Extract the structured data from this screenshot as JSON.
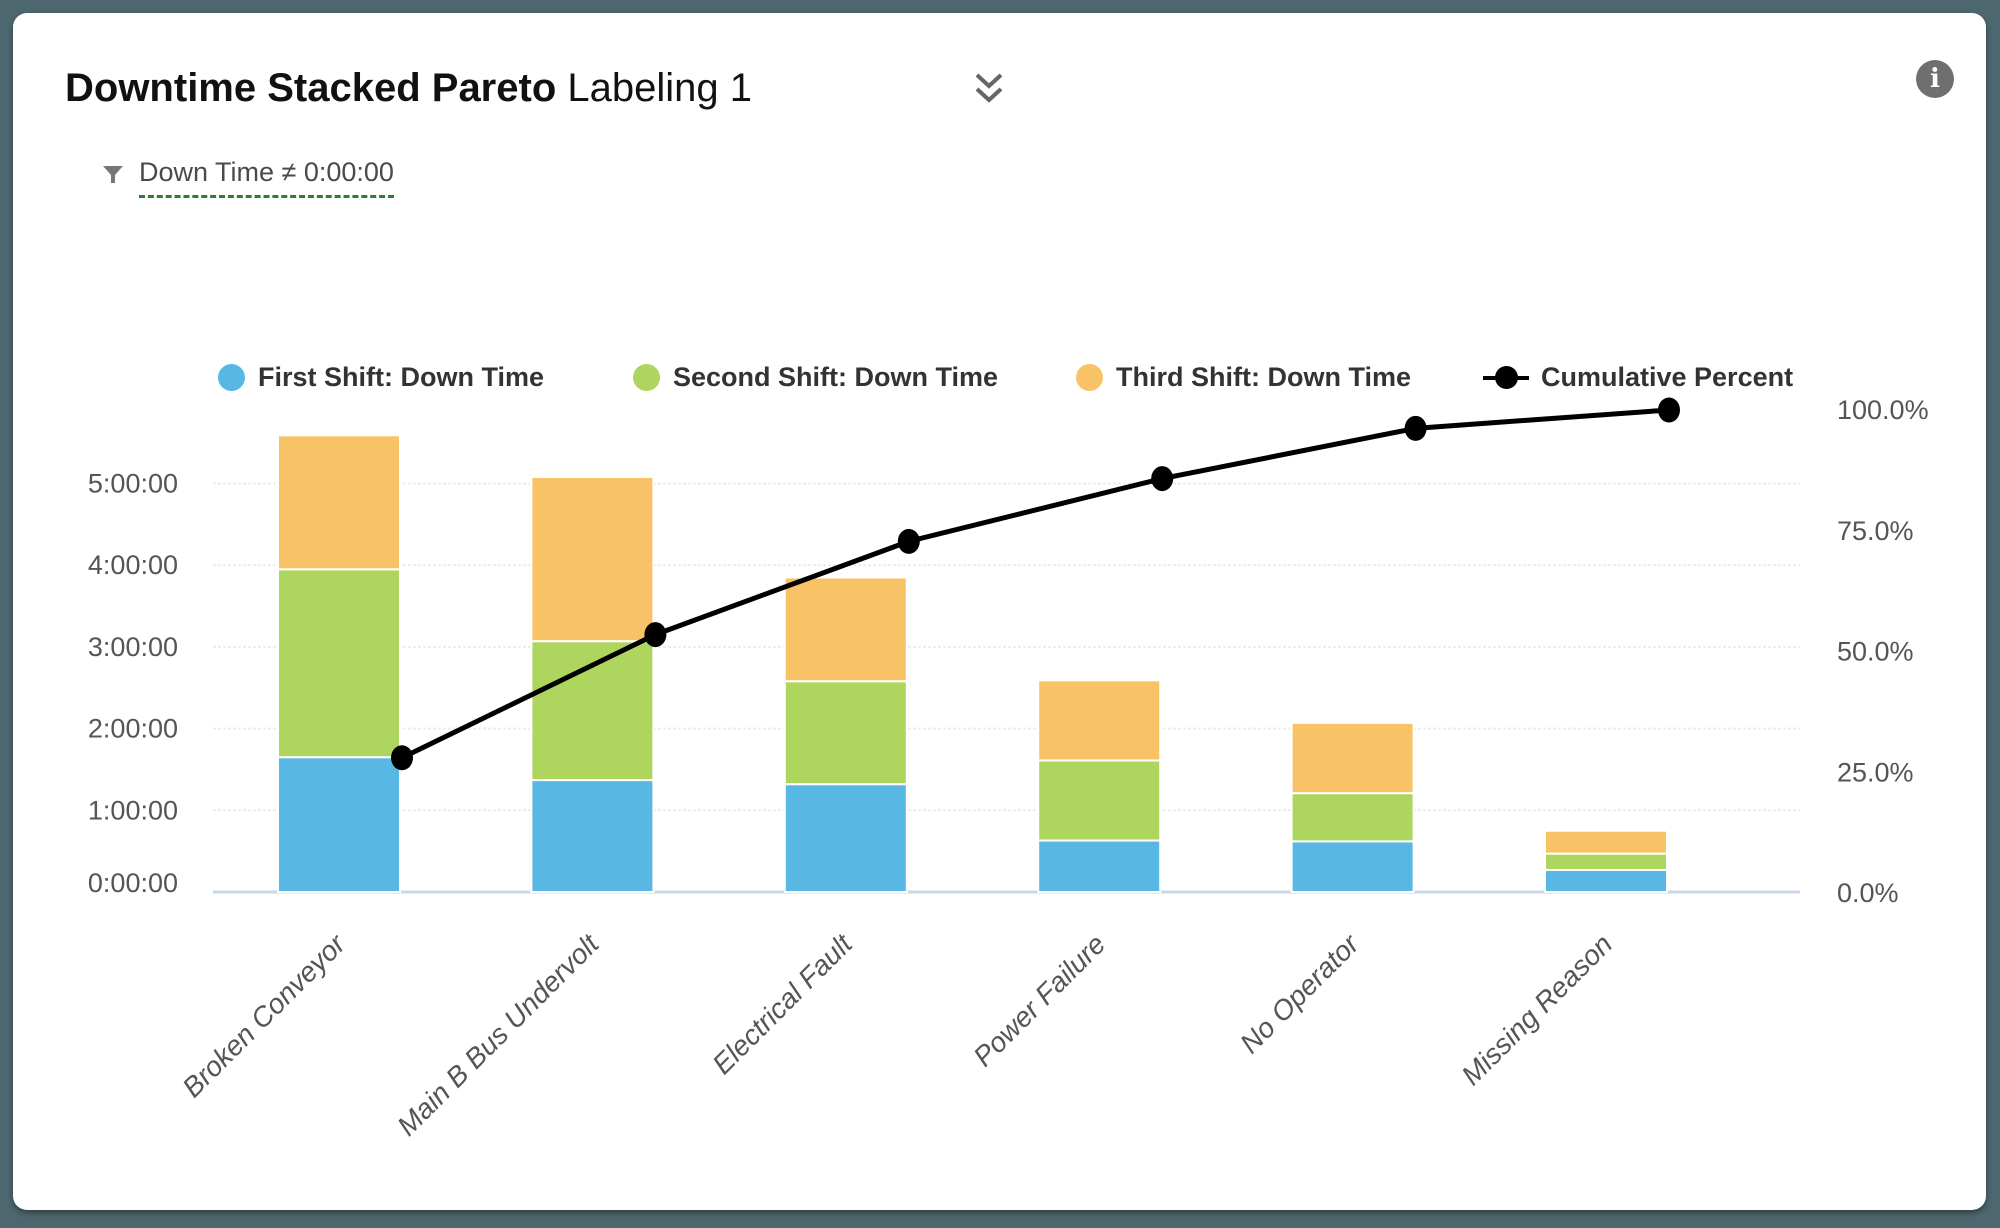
{
  "header": {
    "title_bold": "Downtime Stacked Pareto",
    "title_regular": " Labeling 1",
    "collapse_icon": "double-chevron-down",
    "info_icon": "info",
    "info_glyph": "i"
  },
  "filter": {
    "icon": "funnel",
    "label": "Down Time ≠ 0:00:00",
    "underline_color": "#2e7d32"
  },
  "legend": {
    "items": [
      {
        "label": "First Shift: Down Time",
        "marker": "circle",
        "color": "#59b7e3"
      },
      {
        "label": "Second Shift: Down Time",
        "marker": "circle",
        "color": "#aed55e"
      },
      {
        "label": "Third Shift: Down Time",
        "marker": "circle",
        "color": "#f8c367"
      },
      {
        "label": "Cumulative Percent",
        "marker": "line-dot",
        "color": "#000000"
      }
    ]
  },
  "chart_data": {
    "type": "pareto (stacked bar + cumulative line)",
    "categories": [
      "Broken Conveyor",
      "Main B Bus Undervolt",
      "Electrical Fault",
      "Power Failure",
      "No Operator",
      "Missing Reason"
    ],
    "series": [
      {
        "name": "First Shift: Down Time",
        "color": "#59b7e3",
        "values_hours": [
          1.65,
          1.37,
          1.32,
          0.63,
          0.62,
          0.27
        ],
        "values_hms": [
          "1:39:00",
          "1:22:00",
          "1:19:00",
          "0:38:00",
          "0:37:00",
          "0:16:00"
        ]
      },
      {
        "name": "Second Shift: Down Time",
        "color": "#aed55e",
        "values_hours": [
          2.3,
          1.7,
          1.26,
          0.98,
          0.59,
          0.2
        ],
        "values_hms": [
          "2:18:00",
          "1:42:00",
          "1:16:00",
          "0:59:00",
          "0:35:00",
          "0:12:00"
        ]
      },
      {
        "name": "Third Shift: Down Time",
        "color": "#f8c367",
        "values_hours": [
          1.64,
          2.01,
          1.27,
          0.98,
          0.86,
          0.28
        ],
        "values_hms": [
          "1:38:00",
          "2:01:00",
          "1:16:00",
          "0:59:00",
          "0:52:00",
          "0:17:00"
        ]
      }
    ],
    "totals_hours": [
      5.59,
      5.08,
      3.85,
      2.59,
      2.07,
      0.75
    ],
    "line": {
      "name": "Cumulative Percent",
      "color": "#000000",
      "values_percent": [
        28.0,
        53.5,
        72.8,
        85.8,
        96.2,
        100.0
      ]
    },
    "y_left": {
      "ticks": [
        "0:00:00",
        "1:00:00",
        "2:00:00",
        "3:00:00",
        "4:00:00",
        "5:00:00"
      ],
      "tick_hours": [
        0,
        1,
        2,
        3,
        4,
        5
      ],
      "max_hours": 6.1
    },
    "y_right": {
      "ticks": [
        "0.0%",
        "25.0%",
        "50.0%",
        "75.0%",
        "100.0%"
      ],
      "tick_percents": [
        0,
        25,
        50,
        75,
        100
      ],
      "min": 0,
      "max": 100
    },
    "xlabel": "",
    "ylabel_left": "",
    "ylabel_right": "",
    "grid": "horizontal hour lines only",
    "legend_position": "top",
    "category_label_style": "italic, rotated 45deg",
    "gridline_color": "#ececec",
    "baseline_color": "#c9d7ea",
    "axis_text_color": "#555555"
  }
}
